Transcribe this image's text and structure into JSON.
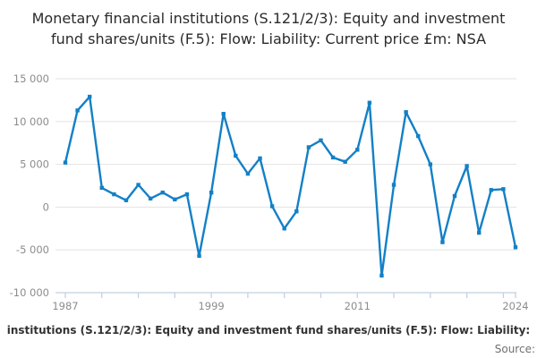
{
  "title": "Monetary financial institutions (S.121/2/3): Equity and investment fund shares/units (F.5): Flow: Liability: Current price £m: NSA",
  "footer": {
    "visible_fragment": "institutions (S.121/2/3): Equity and investment fund shares/units (F.5): Flow: Liability:",
    "source_label": "Source:"
  },
  "colors": {
    "line": "#1380c6",
    "grid": "#e3e3e3",
    "axis": "#c2d1e0",
    "tick_text": "#8c8c8c",
    "title_text": "#2b2b2b",
    "footer_text": "#333333",
    "source_text": "#707070"
  },
  "chart_data": {
    "type": "line",
    "title": "Monetary financial institutions (S.121/2/3): Equity and investment fund shares/units (F.5): Flow: Liability: Current price £m: NSA",
    "xlabel": "",
    "ylabel": "",
    "x": [
      1987,
      1988,
      1989,
      1990,
      1991,
      1992,
      1993,
      1994,
      1995,
      1996,
      1997,
      1998,
      1999,
      2000,
      2001,
      2002,
      2003,
      2004,
      2005,
      2006,
      2007,
      2008,
      2009,
      2010,
      2011,
      2012,
      2013,
      2014,
      2015,
      2016,
      2017,
      2018,
      2019,
      2020,
      2021,
      2022,
      2023,
      2024
    ],
    "values": [
      5200,
      11300,
      12900,
      2250,
      1500,
      800,
      2600,
      1000,
      1700,
      900,
      1500,
      -5700,
      1700,
      10900,
      6000,
      3900,
      5700,
      100,
      -2500,
      -500,
      7000,
      7800,
      5800,
      5300,
      6700,
      12200,
      -8000,
      2600,
      11100,
      8300,
      5000,
      -4100,
      1300,
      4800,
      -3000,
      2000,
      2100,
      -4700
    ],
    "ylim": [
      -10000,
      15000
    ],
    "xlim": [
      1987,
      2024
    ],
    "y_ticks": [
      15000,
      10000,
      5000,
      0,
      -5000,
      -10000
    ],
    "y_tick_labels": [
      "15 000",
      "10 000",
      "5 000",
      "0",
      "-5 000",
      "-10 000"
    ],
    "y_gridlines": [
      15000,
      10000,
      5000,
      0,
      -5000
    ],
    "x_minor_tick_years": [
      1987,
      1990,
      1993,
      1996,
      1999,
      2002,
      2005,
      2008,
      2011,
      2014,
      2017,
      2020,
      2023,
      2024
    ],
    "x_label_years": [
      1987,
      1999,
      2011,
      2024
    ],
    "x_tick_labels": [
      "1987",
      "1999",
      "2011",
      "2024"
    ],
    "grid": "horizontal",
    "legend": "none",
    "marker": "square",
    "line_color": "#1380c6"
  }
}
